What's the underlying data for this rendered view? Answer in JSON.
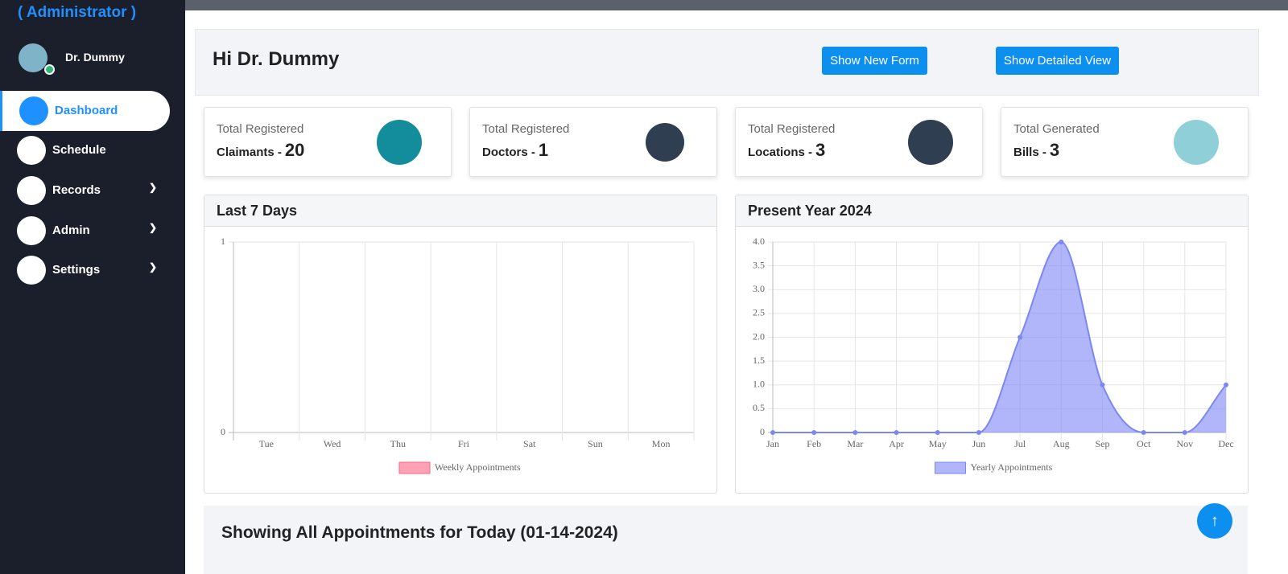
{
  "sidebar": {
    "role": "( Administrator )",
    "user": "Dr. Dummy",
    "nav": [
      "Dashboard",
      "Schedule",
      "Records",
      "Admin",
      "Settings"
    ]
  },
  "header": {
    "greeting": "Hi Dr. Dummy",
    "buttons": [
      "Show New Form",
      "Show Detailed View"
    ]
  },
  "cards": [
    {
      "label": "Total Registered",
      "name": "Claimants -",
      "count": 20
    },
    {
      "label": "Total Registered",
      "name": "Doctors -",
      "count": 1
    },
    {
      "label": "Total Registered",
      "name": "Locations -",
      "count": 3
    },
    {
      "label": "Total Generated",
      "name": "Bills -",
      "count": 3
    }
  ],
  "chart_data": [
    {
      "type": "bar",
      "title": "Last 7 Days",
      "categories": [
        "Tue",
        "Wed",
        "Thu",
        "Fri",
        "Sat",
        "Sun",
        "Mon"
      ],
      "series": [
        {
          "name": "Weekly Appointments",
          "color": "#ff6384",
          "values": [
            0,
            0,
            0,
            0,
            0,
            0,
            0
          ]
        }
      ],
      "ylim": [
        0,
        1
      ],
      "yticks": [
        0,
        1
      ],
      "grid": true
    },
    {
      "type": "line",
      "title": "Present Year 2024",
      "categories": [
        "Jan",
        "Feb",
        "Mar",
        "Apr",
        "May",
        "Jun",
        "Jul",
        "Aug",
        "Sep",
        "Oct",
        "Nov",
        "Dec"
      ],
      "series": [
        {
          "name": "Yearly Appointments",
          "color": "#7c86f5",
          "values": [
            0,
            0,
            0,
            0,
            0,
            0,
            2,
            4,
            1,
            0,
            0,
            1
          ]
        }
      ],
      "ylim": [
        0,
        4
      ],
      "yticks": [
        0,
        0.5,
        {
          "value": 1,
          "label": "1.0"
        },
        1.5,
        {
          "value": 2,
          "label": "2.0"
        },
        2.5,
        {
          "value": 3,
          "label": "3.0"
        },
        3.5,
        {
          "value": 4,
          "label": "4.0"
        }
      ],
      "grid": true,
      "fill": true
    }
  ],
  "appointments": {
    "title": "Showing All Appointments for Today (01-14-2024)"
  }
}
